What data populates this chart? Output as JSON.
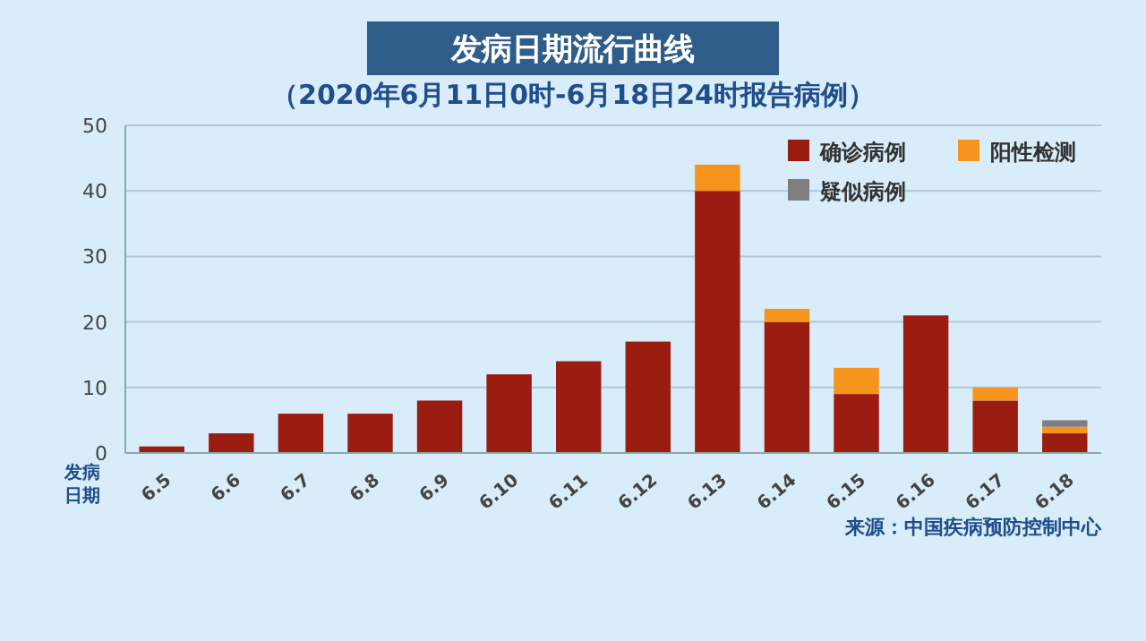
{
  "chart_data": {
    "type": "bar",
    "title": "发病日期流行曲线",
    "subtitle": "（2020年6月11日0时-6月18日24时报告病例）",
    "xlabel": "发病日期",
    "categories": [
      "6.5",
      "6.6",
      "6.7",
      "6.8",
      "6.9",
      "6.10",
      "6.11",
      "6.12",
      "6.13",
      "6.14",
      "6.15",
      "6.16",
      "6.17",
      "6.18"
    ],
    "stacked": true,
    "series": [
      {
        "name": "确诊病例",
        "color": "#9b1c10",
        "values": [
          1,
          3,
          6,
          6,
          8,
          12,
          14,
          17,
          40,
          20,
          9,
          21,
          8,
          3
        ]
      },
      {
        "name": "阳性检测",
        "color": "#f7941d",
        "values": [
          0,
          0,
          0,
          0,
          0,
          0,
          0,
          0,
          4,
          2,
          4,
          0,
          2,
          1
        ]
      },
      {
        "name": "疑似病例",
        "color": "#7f7f7f",
        "values": [
          0,
          0,
          0,
          0,
          0,
          0,
          0,
          0,
          0,
          0,
          0,
          0,
          0,
          1
        ]
      }
    ],
    "ylim": [
      0,
      50
    ],
    "yticks": [
      0,
      10,
      20,
      30,
      40,
      50
    ],
    "grid": "y",
    "legend": "top right",
    "annotations": [
      "来源：中国疾病预防控制中心"
    ]
  }
}
